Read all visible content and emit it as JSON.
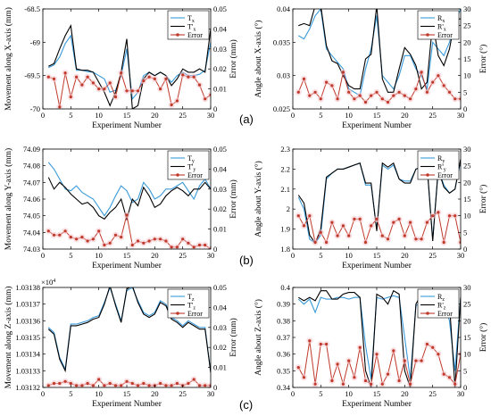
{
  "panel_labels": [
    "(a)",
    "(b)",
    "(c)"
  ],
  "chart_data": [
    {
      "type": "line",
      "panel": "(a)",
      "xlabel": "Experiment Number",
      "ylabel": "Movement along X-axis (mm)",
      "y2label": "Error (mm)",
      "xlim": [
        0,
        30
      ],
      "ylim": [
        -70.0,
        -68.5
      ],
      "y2lim": [
        0,
        0.05
      ],
      "xticks": [
        "0",
        "5",
        "10",
        "15",
        "20",
        "25",
        "30"
      ],
      "yticks": [
        "-68.5",
        "-69",
        "-69.5",
        "-70"
      ],
      "y2ticks": [
        "0",
        "0.01",
        "0.02",
        "0.03",
        "0.04",
        "0.05"
      ],
      "legend_position": "top-right",
      "colors": {
        "T": "#3a9ad9",
        "Tp": "#000000",
        "Error": "#c0392b"
      },
      "legend_labels": [
        "T_x",
        "T'_x",
        "Error"
      ],
      "x": [
        1,
        2,
        3,
        4,
        5,
        6,
        7,
        8,
        9,
        10,
        11,
        12,
        13,
        14,
        15,
        16,
        17,
        18,
        19,
        20,
        21,
        22,
        23,
        24,
        25,
        26,
        27,
        28,
        29,
        30
      ],
      "series": [
        {
          "name": "T_x",
          "axis": "left",
          "values": [
            -69.38,
            -69.34,
            -69.22,
            -69.02,
            -68.9,
            -69.42,
            -69.42,
            -69.44,
            -69.45,
            -69.5,
            -69.55,
            -69.75,
            -69.72,
            -69.5,
            -69.1,
            -69.85,
            -69.75,
            -69.5,
            -69.45,
            -69.5,
            -69.45,
            -69.5,
            -69.6,
            -69.5,
            -69.45,
            -69.5,
            -69.5,
            -69.48,
            -69.42,
            -69.0
          ]
        },
        {
          "name": "T'_x",
          "axis": "left",
          "values": [
            -69.36,
            -69.32,
            -69.1,
            -68.9,
            -68.75,
            -69.4,
            -69.42,
            -69.42,
            -69.45,
            -69.6,
            -69.75,
            -69.95,
            -69.75,
            -69.45,
            -68.95,
            -70.0,
            -69.95,
            -69.55,
            -69.45,
            -69.5,
            -69.45,
            -69.5,
            -69.65,
            -69.55,
            -69.4,
            -69.45,
            -69.45,
            -69.4,
            -69.45,
            -68.8
          ]
        },
        {
          "name": "Error",
          "axis": "right",
          "values": [
            0.016,
            0.015,
            0.001,
            0.018,
            0.006,
            0.016,
            0.012,
            0.016,
            0.013,
            0.01,
            0.01,
            0.013,
            0.006,
            0.018,
            0.009,
            0.009,
            0.009,
            0.014,
            0.016,
            0.015,
            0.01,
            0.015,
            0.002,
            0.004,
            0.017,
            0.016,
            0.016,
            0.012,
            0.005,
            0.007
          ]
        }
      ]
    },
    {
      "type": "line",
      "panel": "(a)",
      "xlabel": "Experiment Number",
      "ylabel": "Angle about X-axis (°)",
      "y2label": "Error (°)",
      "xlim": [
        0,
        30
      ],
      "ylim": [
        0.025,
        0.04
      ],
      "y2lim": [
        0,
        30
      ],
      "xticks": [
        "0",
        "5",
        "10",
        "15",
        "20",
        "25",
        "30"
      ],
      "yticks": [
        "0.025",
        "0.03",
        "0.035",
        "0.04"
      ],
      "y2ticks": [
        "0",
        "5",
        "10",
        "15",
        "20",
        "25",
        "30"
      ],
      "legend_position": "top-right",
      "colors": {
        "T": "#3a9ad9",
        "Tp": "#000000",
        "Error": "#c0392b"
      },
      "legend_labels": [
        "R_x",
        "R'_x",
        "Error"
      ],
      "x": [
        1,
        2,
        3,
        4,
        5,
        6,
        7,
        8,
        9,
        10,
        11,
        12,
        13,
        14,
        15,
        16,
        17,
        18,
        19,
        20,
        21,
        22,
        23,
        24,
        25,
        26,
        27,
        28,
        29,
        30
      ],
      "series": [
        {
          "name": "R_x",
          "axis": "left",
          "values": [
            0.036,
            0.0355,
            0.037,
            0.039,
            0.04,
            0.034,
            0.033,
            0.032,
            0.031,
            0.028,
            0.0275,
            0.027,
            0.031,
            0.034,
            0.039,
            0.03,
            0.029,
            0.028,
            0.03,
            0.033,
            0.033,
            0.031,
            0.03,
            0.028,
            0.035,
            0.034,
            0.033,
            0.035,
            0.038,
            0.04
          ]
        },
        {
          "name": "R'_x",
          "axis": "left",
          "values": [
            0.0375,
            0.0378,
            0.0375,
            0.0405,
            0.0405,
            0.0345,
            0.0322,
            0.0318,
            0.03,
            0.0285,
            0.028,
            0.028,
            0.0325,
            0.0332,
            0.0405,
            0.0295,
            0.0275,
            0.0275,
            0.031,
            0.0342,
            0.0332,
            0.0315,
            0.028,
            0.029,
            0.038,
            0.033,
            0.0315,
            0.034,
            0.0385,
            0.0385
          ]
        },
        {
          "name": "Error",
          "axis": "right",
          "values": [
            5,
            9,
            4,
            5,
            3,
            8,
            7,
            3,
            11,
            5,
            3,
            4,
            2,
            4,
            5,
            3,
            2,
            4,
            5,
            4,
            3,
            6,
            11,
            5,
            8,
            10,
            7,
            5,
            3,
            3
          ]
        }
      ]
    },
    {
      "type": "line",
      "panel": "(b)",
      "xlabel": "Experiment Number",
      "ylabel": "Movement along Y-axis (mm)",
      "y2label": "Error (mm)",
      "xlim": [
        0,
        30
      ],
      "ylim": [
        74.03,
        74.09
      ],
      "y2lim": [
        0,
        0.05
      ],
      "xticks": [
        "0",
        "5",
        "10",
        "15",
        "20",
        "25",
        "30"
      ],
      "yticks": [
        "74.03",
        "74.04",
        "74.05",
        "74.06",
        "74.07",
        "74.08",
        "74.09"
      ],
      "y2ticks": [
        "0",
        "0.01",
        "0.02",
        "0.03",
        "0.04",
        "0.05"
      ],
      "legend_position": "top-right",
      "colors": {
        "T": "#3a9ad9",
        "Tp": "#000000",
        "Error": "#c0392b"
      },
      "legend_labels": [
        "T_y",
        "T'_y",
        "Error"
      ],
      "x": [
        1,
        2,
        3,
        4,
        5,
        6,
        7,
        8,
        9,
        10,
        11,
        12,
        13,
        14,
        15,
        16,
        17,
        18,
        19,
        20,
        21,
        22,
        23,
        24,
        25,
        26,
        27,
        28,
        29,
        30
      ],
      "series": [
        {
          "name": "T_y",
          "axis": "left",
          "values": [
            74.082,
            74.078,
            74.072,
            74.066,
            74.065,
            74.068,
            74.064,
            74.062,
            74.06,
            74.055,
            74.05,
            74.055,
            74.062,
            74.068,
            74.065,
            74.058,
            74.06,
            74.07,
            74.066,
            74.06,
            74.062,
            74.066,
            74.066,
            74.068,
            74.07,
            74.065,
            74.06,
            74.068,
            74.072,
            74.066
          ]
        },
        {
          "name": "T'_y",
          "axis": "left",
          "values": [
            74.073,
            74.066,
            74.07,
            74.067,
            74.063,
            74.06,
            74.057,
            74.058,
            74.055,
            74.05,
            74.048,
            74.052,
            74.055,
            74.06,
            74.048,
            74.06,
            74.056,
            74.067,
            74.062,
            74.055,
            74.057,
            74.062,
            74.065,
            74.067,
            74.065,
            74.062,
            74.066,
            74.066,
            74.07,
            74.066
          ]
        },
        {
          "name": "Error",
          "axis": "right",
          "values": [
            0.009,
            0.007,
            0.007,
            0.009,
            0.006,
            0.005,
            0.006,
            0.004,
            0.005,
            0.009,
            0.002,
            0.003,
            0.007,
            0.006,
            0.017,
            0.002,
            0.004,
            0.003,
            0.004,
            0.005,
            0.005,
            0.004,
            0.001,
            0.001,
            0.005,
            0.003,
            0.001,
            0.002,
            0.002,
            0.0
          ]
        }
      ]
    },
    {
      "type": "line",
      "panel": "(b)",
      "xlabel": "Experiment Number",
      "ylabel": "Angle about Y-axis (°)",
      "y2label": "Error (°)",
      "xlim": [
        0,
        30
      ],
      "ylim": [
        1.8,
        2.3
      ],
      "y2lim": [
        0,
        30
      ],
      "xticks": [
        "0",
        "5",
        "10",
        "15",
        "20",
        "25",
        "30"
      ],
      "yticks": [
        "1.8",
        "1.9",
        "2",
        "2.1",
        "2.2",
        "2.3"
      ],
      "y2ticks": [
        "0",
        "5",
        "10",
        "15",
        "20",
        "25",
        "30"
      ],
      "legend_position": "top-right",
      "colors": {
        "T": "#3a9ad9",
        "Tp": "#000000",
        "Error": "#c0392b"
      },
      "legend_labels": [
        "R_y",
        "R'_y",
        "Error"
      ],
      "x": [
        1,
        2,
        3,
        4,
        5,
        6,
        7,
        8,
        9,
        10,
        11,
        12,
        13,
        14,
        15,
        16,
        17,
        18,
        19,
        20,
        21,
        22,
        23,
        24,
        25,
        26,
        27,
        28,
        29,
        30
      ],
      "series": [
        {
          "name": "R_y",
          "axis": "left",
          "values": [
            2.06,
            2.0,
            1.85,
            1.83,
            1.87,
            2.15,
            2.18,
            2.2,
            2.2,
            2.21,
            2.22,
            2.23,
            2.12,
            2.12,
            1.9,
            2.22,
            2.2,
            2.22,
            2.15,
            2.14,
            2.14,
            2.2,
            2.21,
            2.21,
            1.85,
            2.2,
            2.12,
            2.08,
            2.1,
            2.24
          ]
        },
        {
          "name": "R'_y",
          "axis": "left",
          "values": [
            2.07,
            2.03,
            1.87,
            1.83,
            1.9,
            2.16,
            2.18,
            2.2,
            2.2,
            2.21,
            2.22,
            2.23,
            2.13,
            2.13,
            1.89,
            2.23,
            2.21,
            2.23,
            2.15,
            2.13,
            2.13,
            2.2,
            2.21,
            2.22,
            1.84,
            2.2,
            2.11,
            2.08,
            2.1,
            2.25
          ]
        },
        {
          "name": "Error",
          "axis": "right",
          "values": [
            10,
            7,
            10,
            2,
            5,
            2,
            8,
            4,
            7,
            4,
            9,
            9,
            2,
            7,
            9,
            4,
            3,
            8,
            9,
            4,
            8,
            3,
            3,
            8,
            10,
            11,
            2,
            10,
            10,
            2
          ]
        }
      ]
    },
    {
      "type": "line",
      "panel": "(c)",
      "xlabel": "Experiment Number",
      "ylabel": "Movement along Z-axis (mm)",
      "y2label": "Error (mm)",
      "y_multiplier": "×10^4",
      "xlim": [
        0,
        30
      ],
      "ylim": [
        1.03132,
        1.03138
      ],
      "y2lim": [
        0,
        0.05
      ],
      "xticks": [
        "0",
        "5",
        "10",
        "15",
        "20",
        "25",
        "30"
      ],
      "yticks": [
        "1.03132",
        "1.03133",
        "1.03134",
        "1.03135",
        "1.03136",
        "1.03137",
        "1.03138"
      ],
      "y2ticks": [
        "0",
        "0.01",
        "0.02",
        "0.03",
        "0.04",
        "0.05"
      ],
      "legend_position": "top-right",
      "colors": {
        "T": "#3a9ad9",
        "Tp": "#000000",
        "Error": "#c0392b"
      },
      "legend_labels": [
        "T_z",
        "T'_z",
        "Error"
      ],
      "x": [
        1,
        2,
        3,
        4,
        5,
        6,
        7,
        8,
        9,
        10,
        11,
        12,
        13,
        14,
        15,
        16,
        17,
        18,
        19,
        20,
        21,
        22,
        23,
        24,
        25,
        26,
        27,
        28,
        29,
        30
      ],
      "series": [
        {
          "name": "T_z",
          "axis": "left",
          "values": [
            1.031356,
            1.031353,
            1.031338,
            1.031331,
            1.031358,
            1.031358,
            1.031359,
            1.03136,
            1.031362,
            1.031363,
            1.031371,
            1.03138,
            1.03137,
            1.03136,
            1.031378,
            1.03138,
            1.031372,
            1.031365,
            1.031363,
            1.031365,
            1.031372,
            1.03137,
            1.031362,
            1.03136,
            1.031357,
            1.03136,
            1.031358,
            1.031356,
            1.031356,
            1.031329
          ]
        },
        {
          "name": "T'_z",
          "axis": "left",
          "values": [
            1.031355,
            1.031352,
            1.031337,
            1.03133,
            1.031357,
            1.031357,
            1.031358,
            1.031359,
            1.031361,
            1.031362,
            1.03137,
            1.031381,
            1.031369,
            1.031359,
            1.031379,
            1.031381,
            1.031371,
            1.031364,
            1.031362,
            1.031364,
            1.031371,
            1.031369,
            1.031361,
            1.031359,
            1.031356,
            1.031359,
            1.031357,
            1.031355,
            1.031355,
            1.031329
          ]
        },
        {
          "name": "Error",
          "axis": "right",
          "values": [
            0.001,
            0.002,
            0.002,
            0.003,
            0.002,
            0.001,
            0.001,
            0.002,
            0.001,
            0.004,
            0.001,
            0.002,
            0.001,
            0.001,
            0.003,
            0.002,
            0.001,
            0.002,
            0.001,
            0.001,
            0.002,
            0.001,
            0.001,
            0.002,
            0.001,
            0.002,
            0.004,
            0.001,
            0.001,
            0.001
          ]
        }
      ]
    },
    {
      "type": "line",
      "panel": "(c)",
      "xlabel": "Experiment Number",
      "ylabel": "Angle about Z-axis (°)",
      "y2label": "Error (°)",
      "xlim": [
        0,
        30
      ],
      "ylim": [
        0.34,
        0.4
      ],
      "y2lim": [
        0,
        30
      ],
      "xticks": [
        "0",
        "5",
        "10",
        "15",
        "20",
        "25",
        "30"
      ],
      "yticks": [
        "0.34",
        "0.35",
        "0.36",
        "0.37",
        "0.38",
        "0.39",
        "0.4"
      ],
      "y2ticks": [
        "0",
        "5",
        "10",
        "15",
        "20",
        "25",
        "30"
      ],
      "legend_position": "top-right",
      "colors": {
        "T": "#3a9ad9",
        "Tp": "#000000",
        "Error": "#c0392b"
      },
      "legend_labels": [
        "R_z",
        "R'_z",
        "Error"
      ],
      "x": [
        1,
        2,
        3,
        4,
        5,
        6,
        7,
        8,
        9,
        10,
        11,
        12,
        13,
        14,
        15,
        16,
        17,
        18,
        19,
        20,
        21,
        22,
        23,
        24,
        25,
        26,
        27,
        28,
        29,
        30
      ],
      "series": [
        {
          "name": "R_z",
          "axis": "left",
          "values": [
            0.393,
            0.39,
            0.393,
            0.385,
            0.394,
            0.393,
            0.393,
            0.394,
            0.394,
            0.393,
            0.394,
            0.394,
            0.365,
            0.345,
            0.394,
            0.393,
            0.394,
            0.395,
            0.394,
            0.37,
            0.345,
            0.389,
            0.391,
            0.394,
            0.393,
            0.393,
            0.39,
            0.38,
            0.35,
            0.394
          ]
        },
        {
          "name": "R'_z",
          "axis": "left",
          "values": [
            0.394,
            0.392,
            0.394,
            0.392,
            0.398,
            0.398,
            0.393,
            0.393,
            0.396,
            0.397,
            0.397,
            0.394,
            0.35,
            0.34,
            0.396,
            0.394,
            0.39,
            0.398,
            0.396,
            0.35,
            0.34,
            0.39,
            0.396,
            0.396,
            0.394,
            0.394,
            0.392,
            0.39,
            0.34,
            0.394
          ]
        },
        {
          "name": "Error",
          "axis": "right",
          "values": [
            6,
            3,
            14,
            1,
            13,
            13,
            2,
            7,
            1,
            8,
            3,
            12,
            2,
            1,
            10,
            1,
            4,
            11,
            2,
            8,
            1,
            8,
            8,
            13,
            12,
            10,
            4,
            3,
            1,
            10
          ]
        }
      ]
    }
  ]
}
